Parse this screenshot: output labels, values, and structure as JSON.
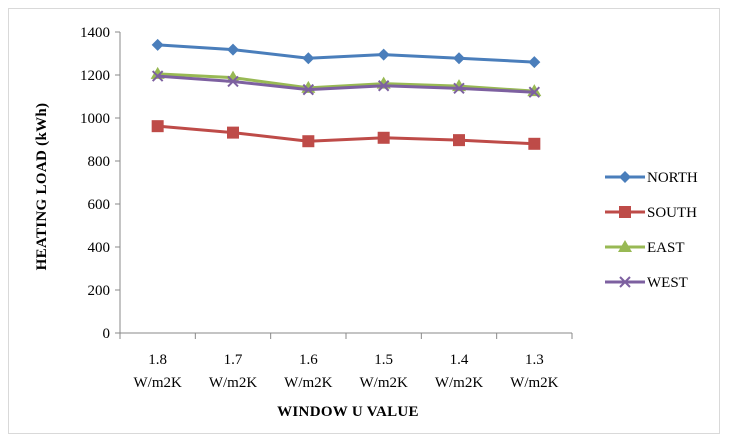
{
  "chart_data": {
    "type": "line",
    "title": "",
    "xlabel": "WINDOW U VALUE",
    "ylabel": "HEATING LOAD (kWh)",
    "categories": [
      [
        "1.8",
        "W/m2K"
      ],
      [
        "1.7",
        "W/m2K"
      ],
      [
        "1.6",
        "W/m2K"
      ],
      [
        "1.5",
        "W/m2K"
      ],
      [
        "1.4",
        "W/m2K"
      ],
      [
        "1.3",
        "W/m2K"
      ]
    ],
    "ylim": [
      0,
      1400
    ],
    "yticks": [
      0,
      200,
      400,
      600,
      800,
      1000,
      1200,
      1400
    ],
    "grid": false,
    "legend_position": "right",
    "series": [
      {
        "name": "NORTH",
        "color": "#4a7ebb",
        "marker": "diamond",
        "values": [
          1340,
          1318,
          1278,
          1295,
          1278,
          1260
        ]
      },
      {
        "name": "SOUTH",
        "color": "#be4b48",
        "marker": "square",
        "values": [
          962,
          932,
          892,
          908,
          897,
          880
        ]
      },
      {
        "name": "EAST",
        "color": "#98b954",
        "marker": "triangle",
        "values": [
          1205,
          1188,
          1140,
          1160,
          1148,
          1125
        ]
      },
      {
        "name": "WEST",
        "color": "#7d60a0",
        "marker": "x",
        "values": [
          1195,
          1170,
          1132,
          1150,
          1138,
          1120
        ]
      }
    ]
  }
}
